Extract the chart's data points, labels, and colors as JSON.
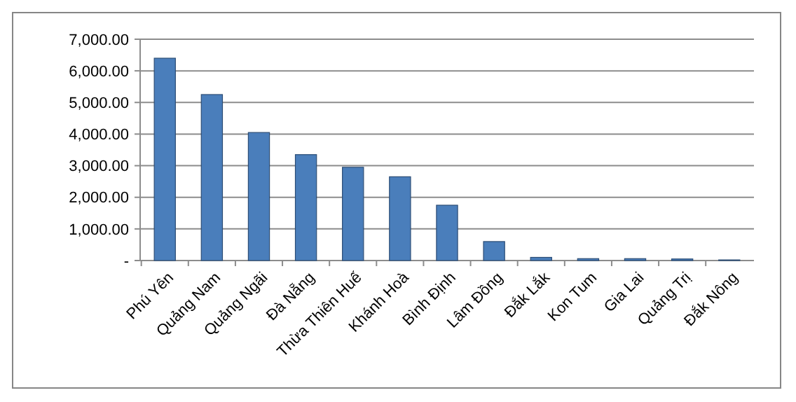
{
  "chart_data": {
    "type": "bar",
    "categories": [
      "Phú Yên",
      "Quảng Nam",
      "Quảng Ngãi",
      "Đà Nẵng",
      "Thừa Thiên Huế",
      "Khánh Hoà",
      "Bình Định",
      "Lâm Đồng",
      "Đắk Lắk",
      "Kon Tum",
      "Gia Lai",
      "Quảng Trị",
      "Đắk Nông"
    ],
    "values": [
      6400,
      5250,
      4050,
      3350,
      2950,
      2650,
      1750,
      600,
      100,
      60,
      60,
      50,
      20
    ],
    "color": "#4a7ebb",
    "ylim": [
      0,
      7000
    ],
    "yticks": [
      {
        "value": 0,
        "label": "-"
      },
      {
        "value": 1000,
        "label": "1,000.00"
      },
      {
        "value": 2000,
        "label": "2,000.00"
      },
      {
        "value": 3000,
        "label": "3,000.00"
      },
      {
        "value": 4000,
        "label": "4,000.00"
      },
      {
        "value": 5000,
        "label": "5,000.00"
      },
      {
        "value": 6000,
        "label": "6,000.00"
      },
      {
        "value": 7000,
        "label": "7,000.00"
      }
    ],
    "grid": "y"
  }
}
